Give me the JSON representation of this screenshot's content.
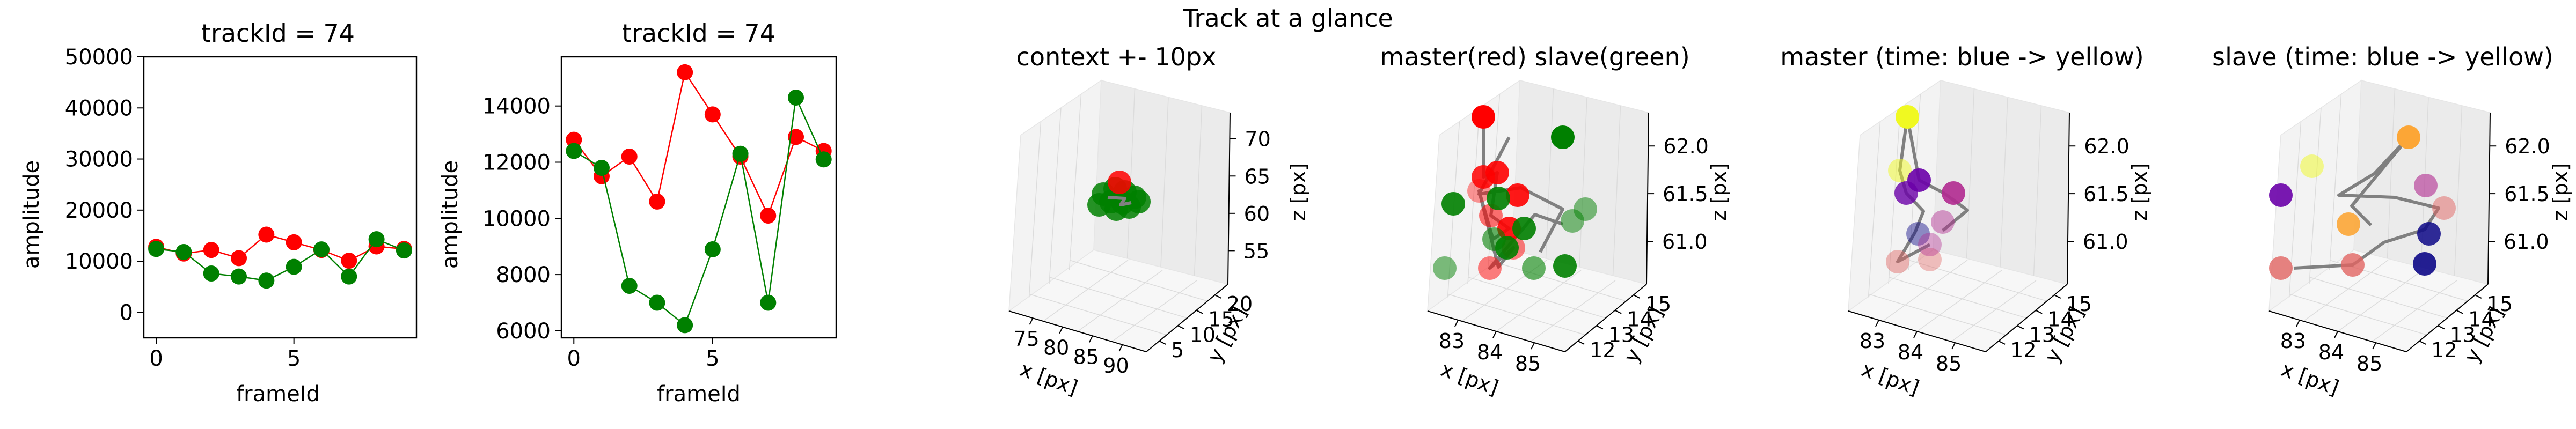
{
  "suptitle": "Track at a glance",
  "colors": {
    "master": "#ff0000",
    "slave": "#008000",
    "link": "#808080"
  },
  "chart_data": [
    {
      "type": "line",
      "title": "trackId = 74",
      "xlabel": "frameId",
      "ylabel": "amplitude",
      "xlim": [
        -0.45,
        9.45
      ],
      "ylim": [
        -5000,
        50000
      ],
      "xticks": [
        "0",
        "5"
      ],
      "yticks": [
        "0",
        "10000",
        "20000",
        "30000",
        "40000",
        "50000"
      ],
      "x": [
        0,
        1,
        2,
        3,
        4,
        5,
        6,
        7,
        8,
        9
      ],
      "series": [
        {
          "color": "#ff0000",
          "values": [
            12800,
            11500,
            12200,
            10600,
            15200,
            13700,
            12200,
            10100,
            12900,
            12400
          ]
        },
        {
          "color": "#008000",
          "values": [
            12400,
            11800,
            7600,
            7000,
            6200,
            8900,
            12300,
            7000,
            14300,
            12100
          ]
        }
      ]
    },
    {
      "type": "line",
      "title": "trackId = 74",
      "xlabel": "frameId",
      "ylabel": "amplitude",
      "xlim": [
        -0.45,
        9.45
      ],
      "ylim": [
        5750,
        15750
      ],
      "xticks": [
        "0",
        "5"
      ],
      "yticks": [
        "6000",
        "8000",
        "10000",
        "12000",
        "14000"
      ],
      "x": [
        0,
        1,
        2,
        3,
        4,
        5,
        6,
        7,
        8,
        9
      ],
      "series": [
        {
          "color": "#ff0000",
          "values": [
            12800,
            11500,
            12200,
            10600,
            15200,
            13700,
            12200,
            10100,
            12900,
            12400
          ]
        },
        {
          "color": "#008000",
          "values": [
            12400,
            11800,
            7600,
            7000,
            6200,
            8900,
            12300,
            7000,
            14300,
            12100
          ]
        }
      ]
    },
    {
      "type": "scatter",
      "title": "context +- 10px",
      "xlabel": "x [px]",
      "ylabel": "y [px]",
      "zlabel": "z [px]",
      "xticks": [
        "75",
        "80",
        "85",
        "90"
      ],
      "yticks": [
        "5",
        "10",
        "15",
        "20"
      ],
      "zticks": [
        "55",
        "60",
        "65",
        "70"
      ],
      "cluster_color": "#008000",
      "highlight_color": "#ff0000"
    },
    {
      "type": "scatter",
      "title": "master(red) slave(green)",
      "xlabel": "x [px]",
      "ylabel": "y [px]",
      "zlabel": "z [px]",
      "xticks": [
        "83",
        "84",
        "85"
      ],
      "yticks": [
        "12",
        "13",
        "14",
        "15"
      ],
      "zticks": [
        "61.0",
        "61.5",
        "62.0"
      ],
      "colors": [
        "#ff0000",
        "#008000"
      ]
    },
    {
      "type": "scatter",
      "title": "master (time: blue -> yellow)",
      "xlabel": "x [px]",
      "ylabel": "y [px]",
      "zlabel": "z [px]",
      "xticks": [
        "83",
        "84",
        "85"
      ],
      "yticks": [
        "12",
        "13",
        "14",
        "15"
      ],
      "zticks": [
        "61.0",
        "61.5",
        "62.0"
      ],
      "colormap": [
        "#0d0887",
        "#6a00a8",
        "#b12a90",
        "#e16462",
        "#fca636",
        "#f0f921"
      ]
    },
    {
      "type": "scatter",
      "title": "slave (time: blue -> yellow)",
      "xlabel": "x [px]",
      "ylabel": "y [px]",
      "zlabel": "z [px]",
      "xticks": [
        "83",
        "84",
        "85"
      ],
      "yticks": [
        "12",
        "13",
        "14",
        "15"
      ],
      "zticks": [
        "61.0",
        "61.5",
        "62.0"
      ],
      "colormap": [
        "#0d0887",
        "#6a00a8",
        "#b12a90",
        "#e16462",
        "#fca636",
        "#f0f921"
      ]
    }
  ]
}
